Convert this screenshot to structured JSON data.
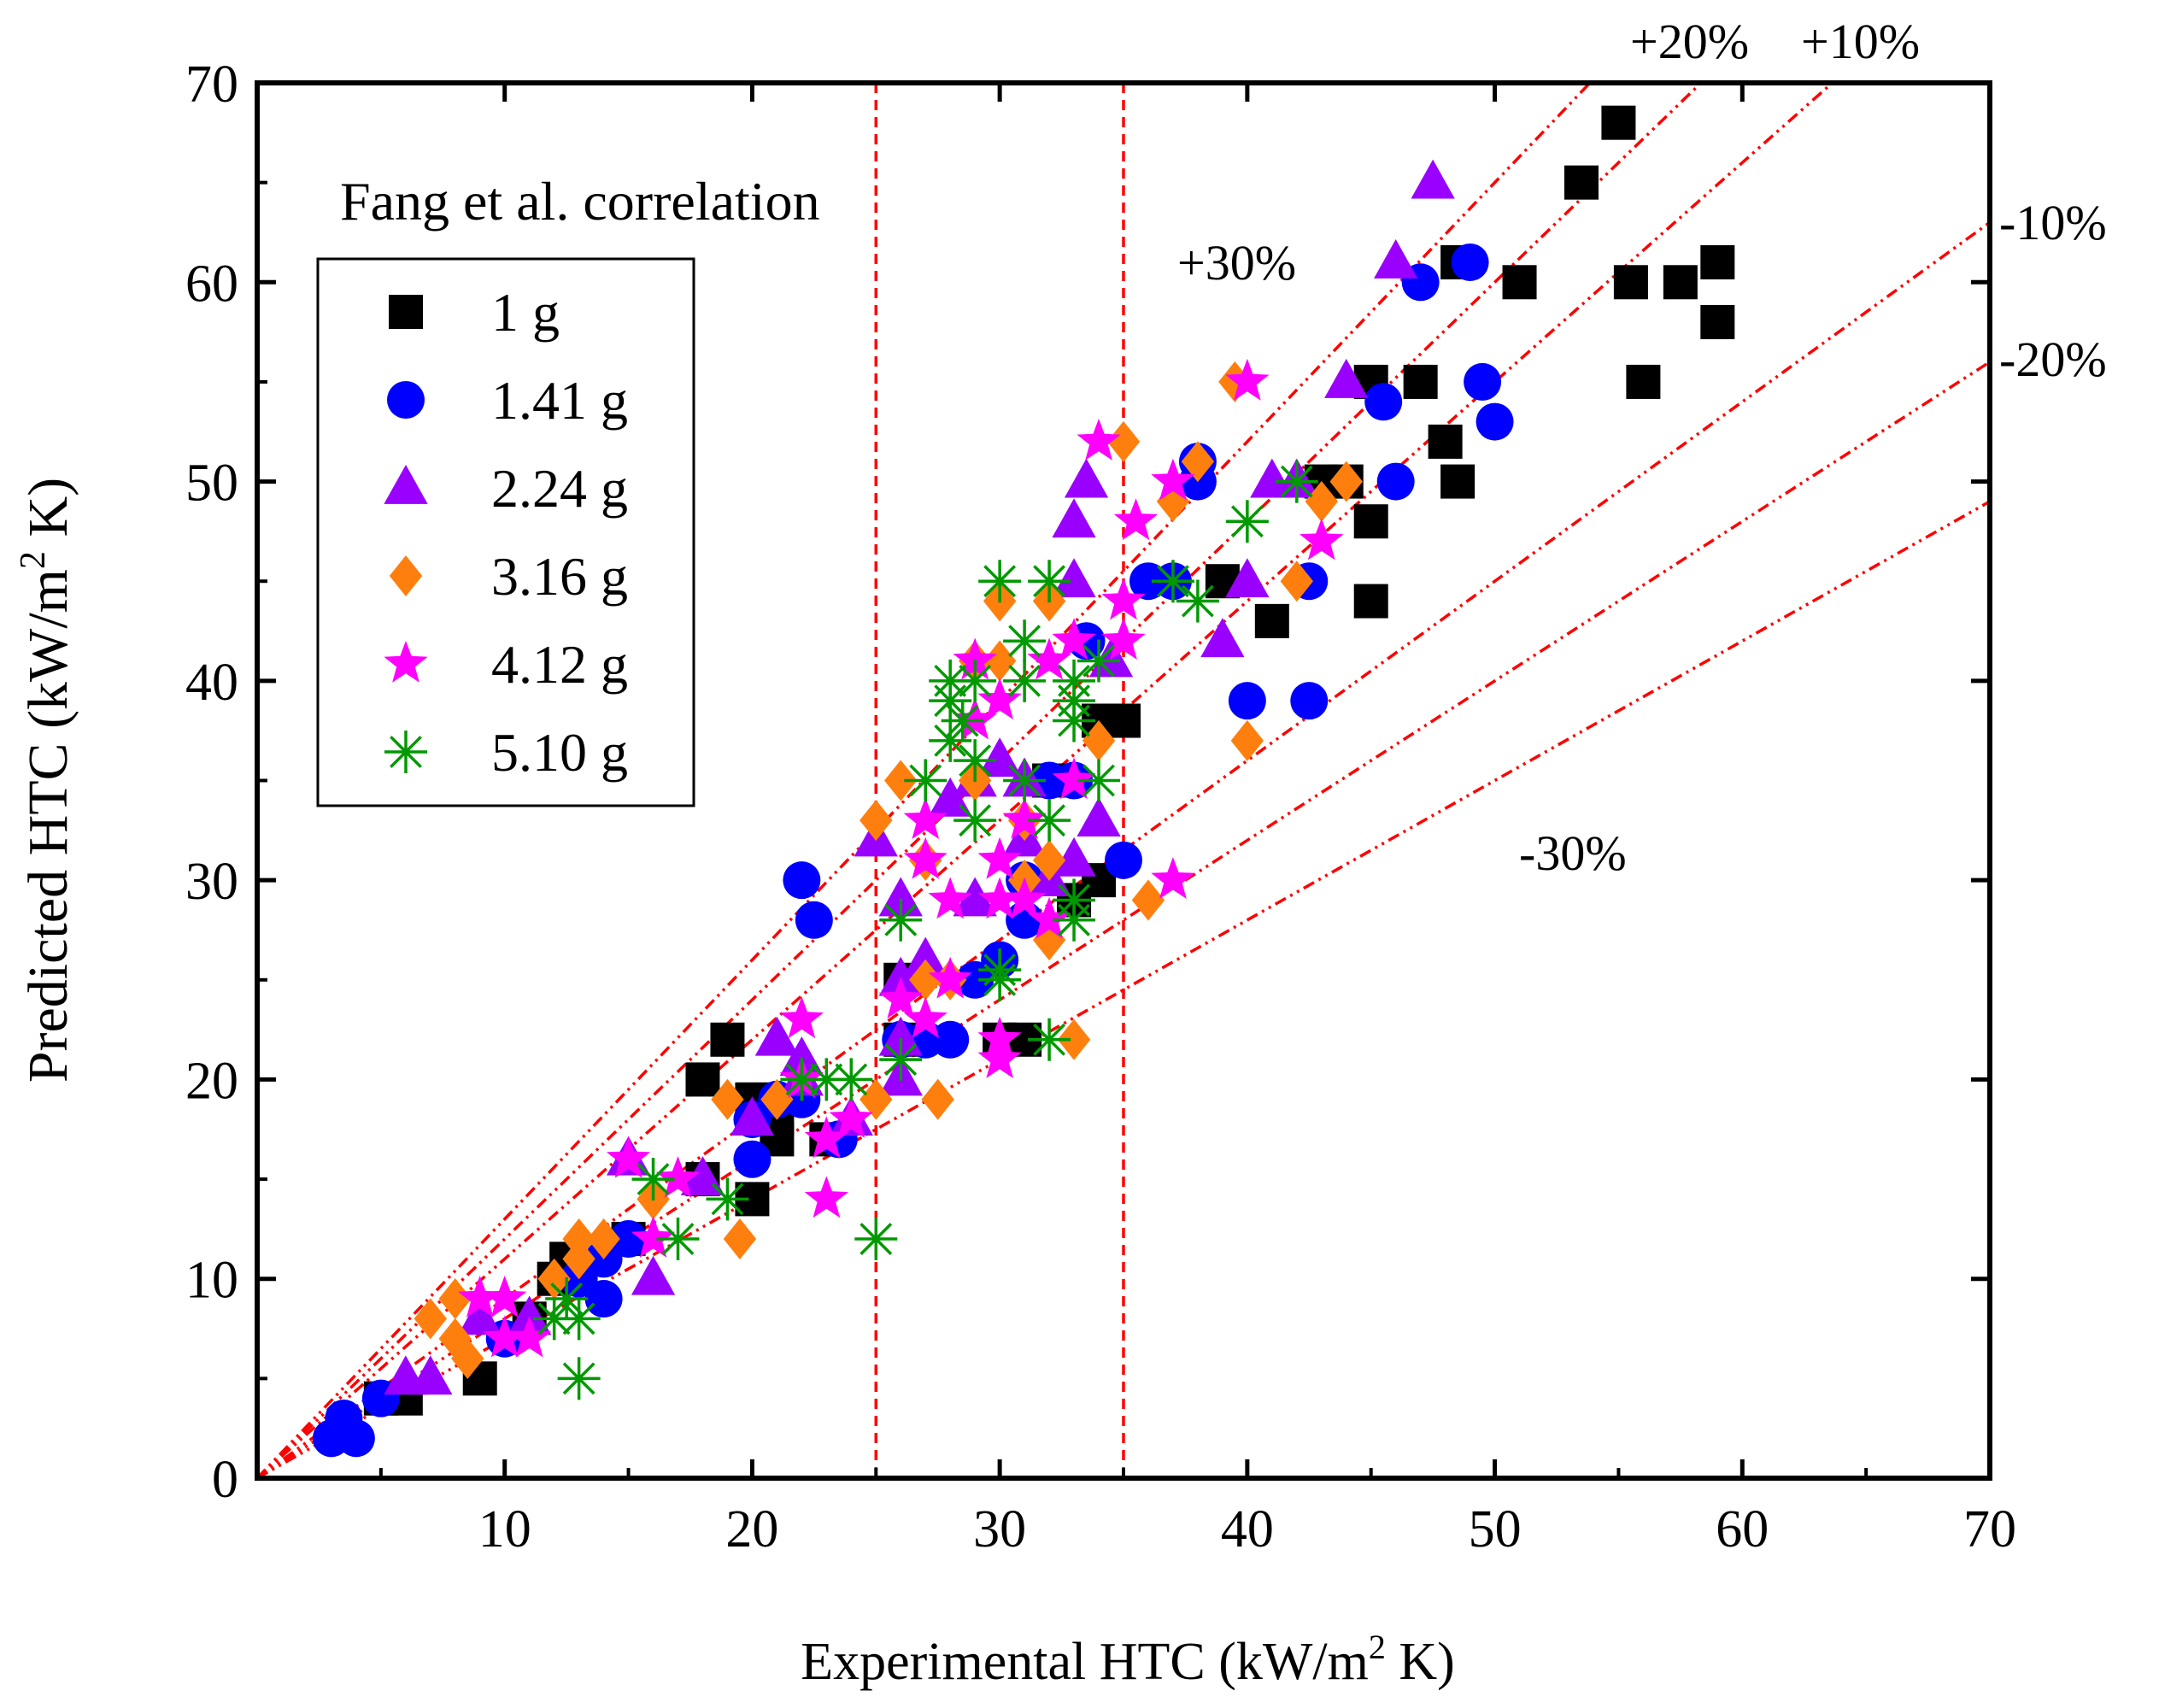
{
  "chart_data": {
    "type": "scatter",
    "title": "Fang et al. correlation",
    "xlabel": "Experimental HTC  (kW/m",
    "ylabel": "Predicted HTC (kW/m",
    "unit_sup": "2",
    "unit_tail": " K)",
    "xlim": [
      0,
      70
    ],
    "ylim": [
      0,
      70
    ],
    "x_ticks": [
      10,
      20,
      30,
      40,
      50,
      60,
      70
    ],
    "y_ticks": [
      0,
      10,
      20,
      30,
      40,
      50,
      60,
      70
    ],
    "x_tick_labels": [
      "10",
      "20",
      "30",
      "40",
      "50",
      "60",
      "70"
    ],
    "y_tick_labels": [
      "0",
      "10",
      "20",
      "30",
      "40",
      "50",
      "60",
      "70"
    ],
    "legend_position": "upper-left",
    "error_bands": [
      {
        "factor": 1.3,
        "label": "+30%"
      },
      {
        "factor": 1.2,
        "label": "+20%"
      },
      {
        "factor": 1.1,
        "label": "+10%"
      },
      {
        "factor": 0.9,
        "label": "-10%"
      },
      {
        "factor": 0.8,
        "label": "-20%"
      },
      {
        "factor": 0.7,
        "label": "-30%"
      }
    ],
    "vertical_lines": [
      25,
      35
    ],
    "series": [
      {
        "name": "1 g",
        "marker": "square",
        "color": "#000000",
        "points": [
          [
            5,
            4
          ],
          [
            6,
            4
          ],
          [
            9,
            5
          ],
          [
            11,
            8
          ],
          [
            12,
            10
          ],
          [
            12.5,
            11
          ],
          [
            15,
            12
          ],
          [
            18,
            15
          ],
          [
            18,
            20
          ],
          [
            19,
            22
          ],
          [
            20,
            14
          ],
          [
            20,
            19
          ],
          [
            21,
            17
          ],
          [
            21,
            18
          ],
          [
            23,
            17
          ],
          [
            26,
            25
          ],
          [
            26,
            22
          ],
          [
            30,
            22
          ],
          [
            31,
            22
          ],
          [
            32,
            35
          ],
          [
            33,
            29
          ],
          [
            34,
            30
          ],
          [
            34,
            38
          ],
          [
            35,
            38
          ],
          [
            39,
            45
          ],
          [
            41,
            43
          ],
          [
            43,
            50
          ],
          [
            44,
            50
          ],
          [
            45,
            48
          ],
          [
            45,
            55
          ],
          [
            45,
            44
          ],
          [
            47,
            55
          ],
          [
            48,
            52
          ],
          [
            48.5,
            50
          ],
          [
            48.5,
            61
          ],
          [
            51,
            60
          ],
          [
            53.5,
            65
          ],
          [
            55,
            68
          ],
          [
            55.5,
            60
          ],
          [
            56,
            55
          ],
          [
            57.5,
            60
          ],
          [
            59,
            58
          ],
          [
            59,
            61
          ]
        ]
      },
      {
        "name": "1.41 g",
        "marker": "circle",
        "color": "#0000ff",
        "points": [
          [
            3,
            2
          ],
          [
            3.5,
            3
          ],
          [
            4,
            2
          ],
          [
            5,
            4
          ],
          [
            10,
            7
          ],
          [
            13,
            10
          ],
          [
            14,
            9
          ],
          [
            14,
            11
          ],
          [
            15,
            12
          ],
          [
            20,
            16
          ],
          [
            20,
            18
          ],
          [
            21,
            19
          ],
          [
            22,
            19
          ],
          [
            22,
            30
          ],
          [
            22.5,
            28
          ],
          [
            23.5,
            17
          ],
          [
            26,
            22
          ],
          [
            27,
            22
          ],
          [
            28,
            22
          ],
          [
            29,
            25
          ],
          [
            30,
            26
          ],
          [
            31,
            28
          ],
          [
            31,
            30
          ],
          [
            32,
            35
          ],
          [
            33,
            35
          ],
          [
            33.5,
            42
          ],
          [
            35,
            31
          ],
          [
            36,
            45
          ],
          [
            37,
            45
          ],
          [
            38,
            50
          ],
          [
            38,
            51
          ],
          [
            40,
            39
          ],
          [
            42.5,
            45
          ],
          [
            42.5,
            39
          ],
          [
            45.5,
            54
          ],
          [
            46,
            50
          ],
          [
            47,
            60
          ],
          [
            49,
            61
          ],
          [
            49.5,
            55
          ],
          [
            50,
            53
          ]
        ]
      },
      {
        "name": "2.24 g",
        "marker": "triangle",
        "color": "#9900ff",
        "points": [
          [
            6,
            5
          ],
          [
            7,
            5
          ],
          [
            9,
            8
          ],
          [
            11,
            8
          ],
          [
            15,
            16
          ],
          [
            16,
            10
          ],
          [
            18,
            15
          ],
          [
            20,
            18
          ],
          [
            21,
            22
          ],
          [
            22,
            21
          ],
          [
            22,
            20
          ],
          [
            24,
            18
          ],
          [
            25,
            32
          ],
          [
            26,
            22
          ],
          [
            26,
            25
          ],
          [
            26,
            20
          ],
          [
            26,
            29
          ],
          [
            27,
            26
          ],
          [
            28,
            34
          ],
          [
            29,
            29
          ],
          [
            29,
            35
          ],
          [
            30,
            36
          ],
          [
            31,
            32
          ],
          [
            31,
            35
          ],
          [
            32,
            30
          ],
          [
            33,
            45
          ],
          [
            33,
            48
          ],
          [
            33.5,
            50
          ],
          [
            33,
            31
          ],
          [
            34,
            33
          ],
          [
            34.5,
            41
          ],
          [
            39,
            42
          ],
          [
            40,
            45
          ],
          [
            41,
            50
          ],
          [
            42,
            50
          ],
          [
            44,
            55
          ],
          [
            46,
            61
          ],
          [
            47.5,
            65
          ]
        ]
      },
      {
        "name": "3.16 g",
        "marker": "diamond",
        "color": "#ff7f0e",
        "points": [
          [
            7,
            8
          ],
          [
            8,
            7
          ],
          [
            8,
            9
          ],
          [
            8.5,
            6
          ],
          [
            12,
            10
          ],
          [
            13,
            11
          ],
          [
            13,
            12
          ],
          [
            14,
            12
          ],
          [
            16,
            14
          ],
          [
            19,
            19
          ],
          [
            19.5,
            12
          ],
          [
            21,
            19
          ],
          [
            25,
            19
          ],
          [
            25,
            33
          ],
          [
            26,
            35
          ],
          [
            27,
            25
          ],
          [
            27,
            31
          ],
          [
            27.5,
            19
          ],
          [
            28,
            25
          ],
          [
            29,
            41
          ],
          [
            29,
            35
          ],
          [
            30,
            44
          ],
          [
            30,
            41
          ],
          [
            31,
            30
          ],
          [
            31,
            33
          ],
          [
            32,
            27
          ],
          [
            32,
            31
          ],
          [
            32,
            44
          ],
          [
            33,
            22
          ],
          [
            34,
            37
          ],
          [
            35,
            52
          ],
          [
            36,
            29
          ],
          [
            37,
            49
          ],
          [
            38,
            51
          ],
          [
            39.5,
            55
          ],
          [
            40,
            37
          ],
          [
            42,
            45
          ],
          [
            43,
            49
          ],
          [
            44,
            50
          ]
        ]
      },
      {
        "name": "4.12 g",
        "marker": "star",
        "color": "#ff00ff",
        "points": [
          [
            9,
            9
          ],
          [
            10,
            7
          ],
          [
            10,
            9
          ],
          [
            11,
            7
          ],
          [
            15,
            16
          ],
          [
            16,
            12
          ],
          [
            17,
            15
          ],
          [
            22,
            23
          ],
          [
            22,
            20
          ],
          [
            23,
            17
          ],
          [
            23,
            14
          ],
          [
            24,
            18
          ],
          [
            26,
            24
          ],
          [
            27,
            33
          ],
          [
            27,
            31
          ],
          [
            27,
            23
          ],
          [
            28,
            29
          ],
          [
            28,
            25
          ],
          [
            29,
            41
          ],
          [
            29,
            38
          ],
          [
            30,
            39
          ],
          [
            30,
            31
          ],
          [
            30,
            29
          ],
          [
            30,
            22
          ],
          [
            30,
            21
          ],
          [
            31,
            33
          ],
          [
            31,
            29
          ],
          [
            32,
            28
          ],
          [
            32,
            41
          ],
          [
            33,
            35
          ],
          [
            33,
            42
          ],
          [
            34,
            52
          ],
          [
            35,
            44
          ],
          [
            35,
            42
          ],
          [
            35.5,
            48
          ],
          [
            37,
            50
          ],
          [
            37,
            30
          ],
          [
            40,
            55
          ],
          [
            43,
            47
          ]
        ]
      },
      {
        "name": "5.10 g",
        "marker": "asterisk",
        "color": "#009900",
        "points": [
          [
            12,
            8
          ],
          [
            12.5,
            9
          ],
          [
            13,
            5
          ],
          [
            13,
            8
          ],
          [
            16,
            15
          ],
          [
            17,
            12
          ],
          [
            19,
            14
          ],
          [
            22,
            20
          ],
          [
            23,
            20
          ],
          [
            24,
            20
          ],
          [
            25,
            12
          ],
          [
            26,
            21
          ],
          [
            26,
            28
          ],
          [
            27,
            35
          ],
          [
            28,
            37
          ],
          [
            28,
            40
          ],
          [
            28,
            39
          ],
          [
            28.5,
            38
          ],
          [
            29,
            36
          ],
          [
            29,
            33
          ],
          [
            29,
            40
          ],
          [
            30,
            45
          ],
          [
            30,
            25
          ],
          [
            30,
            25.5
          ],
          [
            31,
            35
          ],
          [
            31,
            40
          ],
          [
            31,
            42
          ],
          [
            32,
            45
          ],
          [
            32,
            33
          ],
          [
            32,
            22
          ],
          [
            33,
            38
          ],
          [
            33,
            39
          ],
          [
            33,
            40
          ],
          [
            33,
            28
          ],
          [
            33,
            29
          ],
          [
            34,
            35
          ],
          [
            34,
            41
          ],
          [
            37,
            45
          ],
          [
            38,
            44
          ],
          [
            40,
            48
          ],
          [
            42,
            50
          ]
        ]
      }
    ]
  }
}
